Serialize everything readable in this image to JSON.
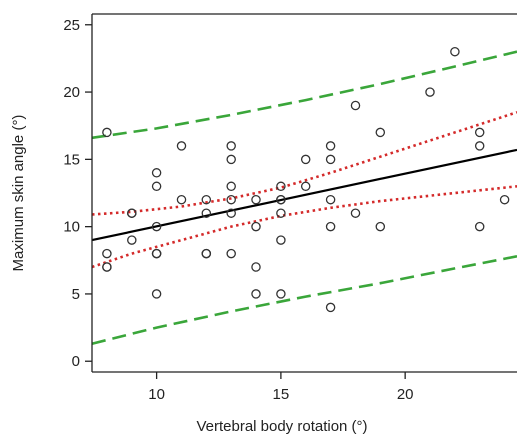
{
  "chart_data": {
    "type": "scatter",
    "xlabel": "Vertebral body rotation (°)",
    "ylabel": "Maximum skin angle (°)",
    "xlim": [
      7.4,
      24.5
    ],
    "ylim": [
      -0.8,
      25.8
    ],
    "xticks": [
      10,
      15,
      20
    ],
    "yticks": [
      0,
      5,
      10,
      15,
      20,
      25
    ],
    "grid": false,
    "points": [
      {
        "x": 8,
        "y": 17
      },
      {
        "x": 8,
        "y": 8
      },
      {
        "x": 8,
        "y": 7
      },
      {
        "x": 8,
        "y": 7
      },
      {
        "x": 9,
        "y": 11
      },
      {
        "x": 9,
        "y": 11
      },
      {
        "x": 9,
        "y": 9
      },
      {
        "x": 10,
        "y": 14
      },
      {
        "x": 10,
        "y": 13
      },
      {
        "x": 10,
        "y": 10
      },
      {
        "x": 10,
        "y": 8
      },
      {
        "x": 10,
        "y": 8
      },
      {
        "x": 10,
        "y": 5
      },
      {
        "x": 11,
        "y": 16
      },
      {
        "x": 11,
        "y": 12
      },
      {
        "x": 12,
        "y": 12
      },
      {
        "x": 12,
        "y": 11
      },
      {
        "x": 12,
        "y": 8
      },
      {
        "x": 12,
        "y": 8
      },
      {
        "x": 13,
        "y": 16
      },
      {
        "x": 13,
        "y": 15
      },
      {
        "x": 13,
        "y": 13
      },
      {
        "x": 13,
        "y": 12
      },
      {
        "x": 13,
        "y": 11
      },
      {
        "x": 13,
        "y": 8
      },
      {
        "x": 14,
        "y": 12
      },
      {
        "x": 14,
        "y": 10
      },
      {
        "x": 14,
        "y": 7
      },
      {
        "x": 14,
        "y": 5
      },
      {
        "x": 15,
        "y": 13
      },
      {
        "x": 15,
        "y": 12
      },
      {
        "x": 15,
        "y": 12
      },
      {
        "x": 15,
        "y": 11
      },
      {
        "x": 15,
        "y": 9
      },
      {
        "x": 15,
        "y": 5
      },
      {
        "x": 16,
        "y": 15
      },
      {
        "x": 16,
        "y": 13
      },
      {
        "x": 17,
        "y": 16
      },
      {
        "x": 17,
        "y": 15
      },
      {
        "x": 17,
        "y": 12
      },
      {
        "x": 17,
        "y": 10
      },
      {
        "x": 17,
        "y": 4
      },
      {
        "x": 18,
        "y": 19
      },
      {
        "x": 18,
        "y": 11
      },
      {
        "x": 19,
        "y": 17
      },
      {
        "x": 19,
        "y": 10
      },
      {
        "x": 21,
        "y": 20
      },
      {
        "x": 22,
        "y": 23
      },
      {
        "x": 23,
        "y": 17
      },
      {
        "x": 23,
        "y": 16
      },
      {
        "x": 23,
        "y": 10
      },
      {
        "x": 24,
        "y": 12
      }
    ],
    "lines": [
      {
        "style": "regression",
        "color": "#000000",
        "dash": "solid",
        "x": [
          7.4,
          24.5
        ],
        "y": [
          9.0,
          15.7
        ]
      },
      {
        "style": "confidence-upper",
        "color": "#d42a2a",
        "dash": "dotted",
        "x": [
          7.4,
          9,
          11,
          13,
          15,
          17,
          19,
          21,
          23,
          24.5
        ],
        "y": [
          10.9,
          11.1,
          11.5,
          12.1,
          12.9,
          14.0,
          15.2,
          16.4,
          17.6,
          18.5
        ]
      },
      {
        "style": "confidence-lower",
        "color": "#d42a2a",
        "dash": "dotted",
        "x": [
          7.4,
          9,
          11,
          13,
          15,
          17,
          19,
          21,
          23,
          24.5
        ],
        "y": [
          7.0,
          8.0,
          9.0,
          10.0,
          10.8,
          11.4,
          11.9,
          12.3,
          12.7,
          13.0
        ]
      },
      {
        "style": "prediction-upper",
        "color": "#3aa63a",
        "dash": "dashed",
        "x": [
          7.4,
          10,
          13,
          16,
          19,
          22,
          24.5
        ],
        "y": [
          16.6,
          17.3,
          18.3,
          19.4,
          20.6,
          21.9,
          23.0
        ]
      },
      {
        "style": "prediction-lower",
        "color": "#3aa63a",
        "dash": "dashed",
        "x": [
          7.4,
          10,
          13,
          16,
          19,
          22,
          24.5
        ],
        "y": [
          1.3,
          2.5,
          3.7,
          4.8,
          5.8,
          6.9,
          7.8
        ]
      }
    ]
  }
}
